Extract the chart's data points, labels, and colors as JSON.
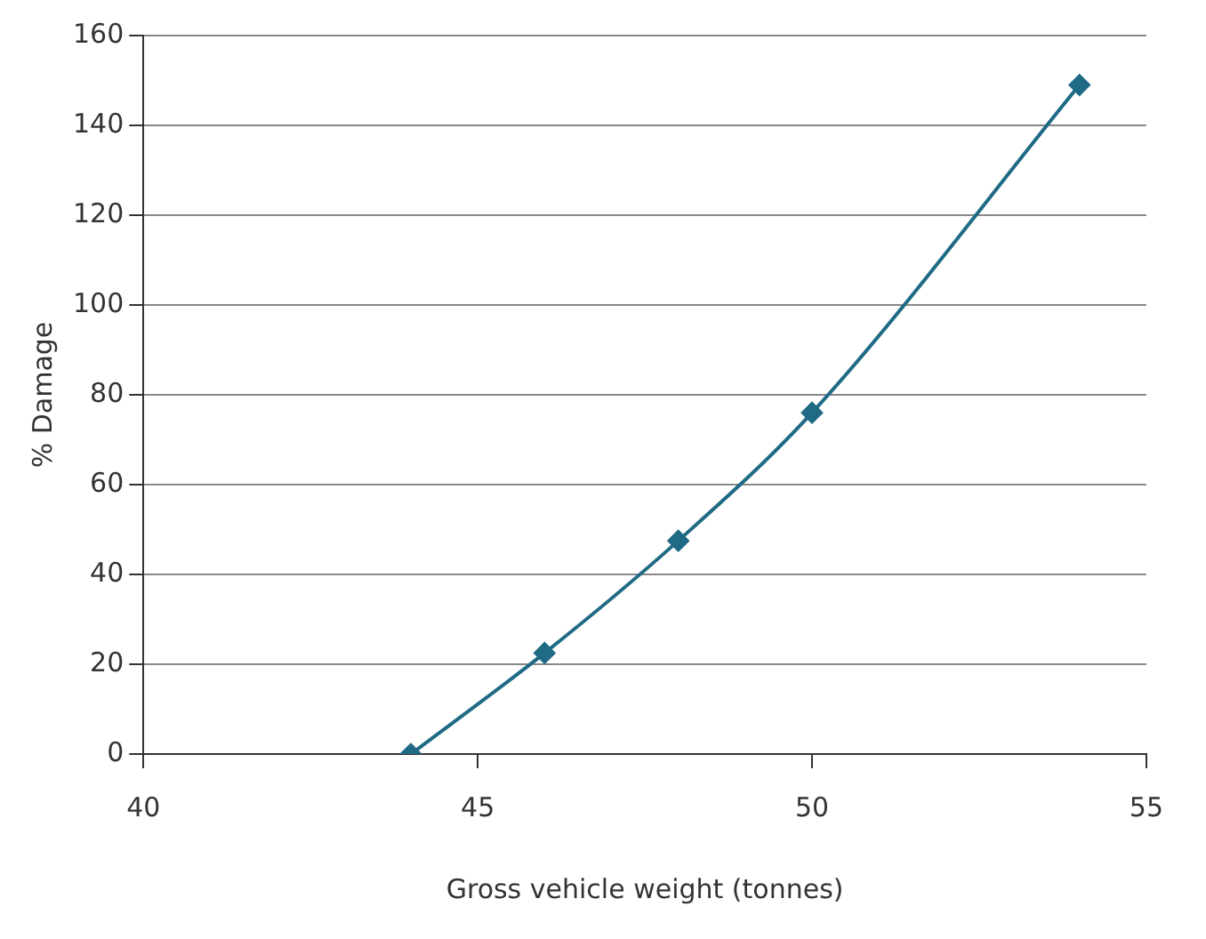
{
  "chart_data": {
    "type": "line",
    "xlabel": "Gross vehicle weight (tonnes)",
    "ylabel": "% Damage",
    "x": [
      44,
      46,
      48,
      50,
      54
    ],
    "series": [
      {
        "color": "#1f6a84",
        "values": [
          0,
          22.5,
          47.5,
          76,
          149
        ]
      }
    ],
    "xlim": [
      40,
      55
    ],
    "xticks": [
      40,
      45,
      50,
      55
    ],
    "ylim": [
      0,
      160
    ],
    "yticks": [
      0,
      20,
      40,
      60,
      80,
      100,
      120,
      140,
      160
    ],
    "grid": "y",
    "marker": "diamond",
    "line_style": "solid",
    "legend": false
  }
}
